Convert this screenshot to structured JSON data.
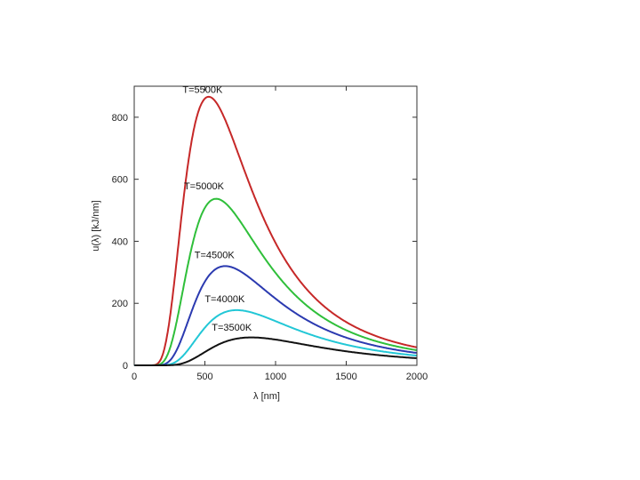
{
  "chart_data": {
    "type": "line",
    "title": "",
    "xlabel": "λ [nm]",
    "ylabel": "u(λ) [kJ/nm]",
    "xlim": [
      0,
      2000
    ],
    "ylim": [
      0,
      900
    ],
    "x_ticks": [
      0,
      500,
      1000,
      1500,
      2000
    ],
    "y_ticks": [
      0,
      200,
      400,
      600,
      800
    ],
    "grid": false,
    "legend": "none",
    "series": [
      {
        "name": "T=5500K",
        "color": "#c62828",
        "temperature": 5500,
        "peak_x": 527,
        "peak_y": 866,
        "label_at": [
          342,
          878
        ]
      },
      {
        "name": "T=5000K",
        "color": "#2fbf3a",
        "temperature": 5000,
        "peak_x": 580,
        "peak_y": 537,
        "label_at": [
          352,
          567
        ]
      },
      {
        "name": "T=4500K",
        "color": "#2b3ab0",
        "temperature": 4500,
        "peak_x": 644,
        "peak_y": 320,
        "label_at": [
          426,
          345
        ]
      },
      {
        "name": "T=4000K",
        "color": "#22c7d6",
        "temperature": 4000,
        "peak_x": 725,
        "peak_y": 178,
        "label_at": [
          499,
          203
        ]
      },
      {
        "name": "T=3500K",
        "color": "#111111",
        "temperature": 3500,
        "peak_x": 828,
        "peak_y": 90,
        "label_at": [
          549,
          112
        ]
      }
    ]
  }
}
